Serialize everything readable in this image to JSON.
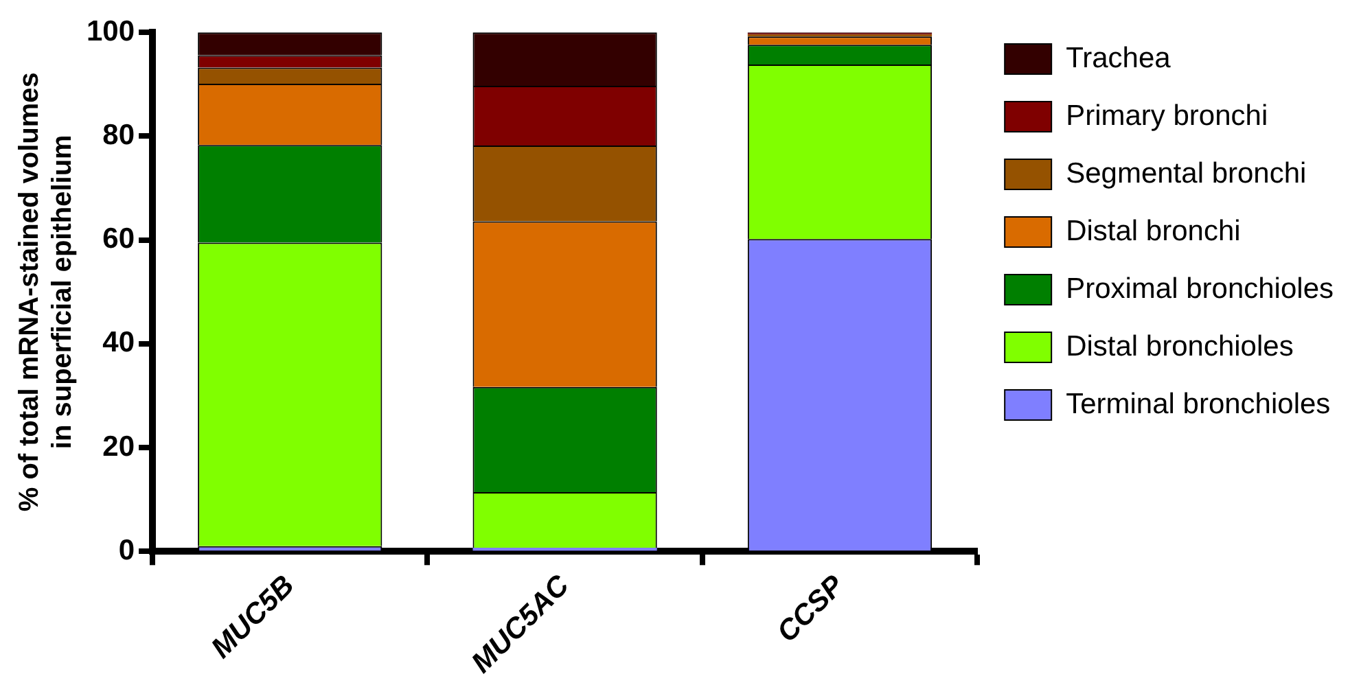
{
  "chart_data": {
    "type": "bar",
    "stacked": true,
    "categories": [
      "MUC5B",
      "MUC5AC",
      "CCSP"
    ],
    "ylabel": "% of total mRNA-stained volumes\nin superficial epithelium",
    "ylim": [
      0,
      100
    ],
    "yticks": [
      0,
      20,
      40,
      60,
      80,
      100
    ],
    "grid": false,
    "legend": "right",
    "series": [
      {
        "name": "Terminal bronchioles",
        "color": "#7f7fff",
        "values": [
          1,
          0.7,
          60.2
        ]
      },
      {
        "name": "Distal bronchioles",
        "color": "#80ff00",
        "values": [
          58.5,
          10.7,
          33.6
        ]
      },
      {
        "name": "Proximal bronchioles",
        "color": "#007f00",
        "values": [
          18.8,
          20.3,
          3.8
        ]
      },
      {
        "name": "Distal bronchi",
        "color": "#d96b00",
        "values": [
          11.8,
          31.9,
          1.6
        ]
      },
      {
        "name": "Segmental bronchi",
        "color": "#955200",
        "values": [
          3.1,
          14.6,
          0.4
        ]
      },
      {
        "name": "Primary bronchi",
        "color": "#7f0000",
        "values": [
          2.4,
          11.5,
          0.2
        ]
      },
      {
        "name": "Trachea",
        "color": "#330000",
        "values": [
          4.4,
          10.3,
          0.2
        ]
      }
    ]
  }
}
